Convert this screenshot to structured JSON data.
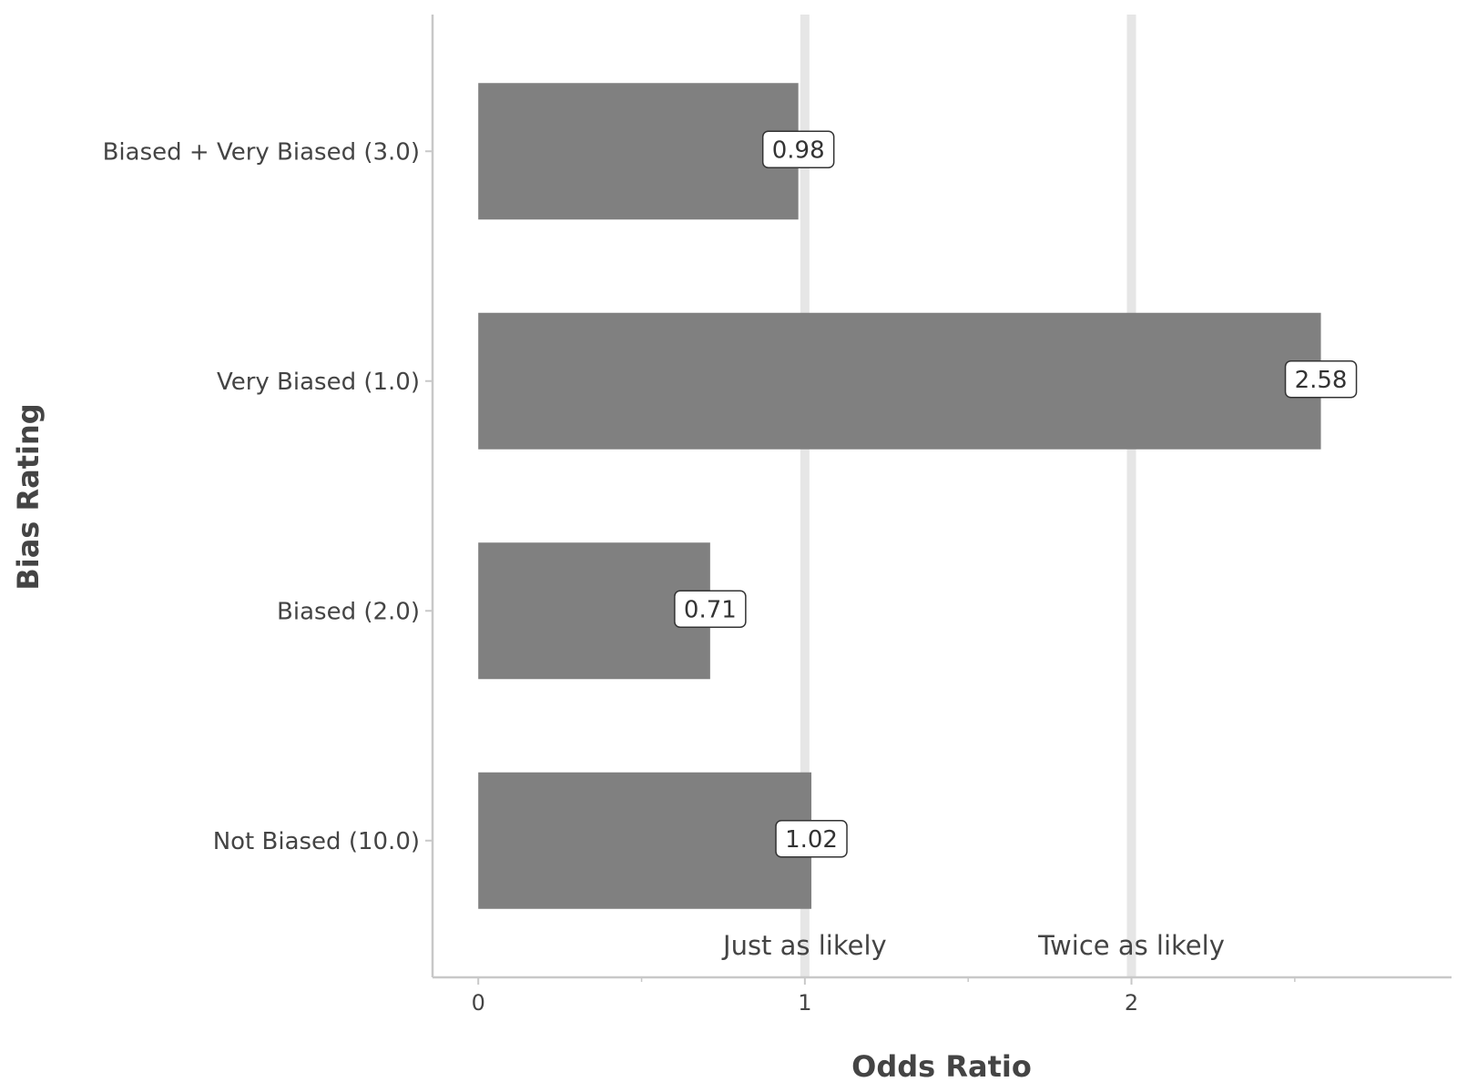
{
  "chart_data": {
    "type": "bar",
    "orientation": "horizontal",
    "xlabel": "Odds Ratio",
    "ylabel": "Bias Rating",
    "categories": [
      "Biased + Very Biased (3.0)",
      "Very Biased (1.0)",
      "Biased (2.0)",
      "Not Biased (10.0)"
    ],
    "values": [
      0.98,
      2.58,
      0.71,
      1.02
    ],
    "value_labels": [
      "0.98",
      "2.58",
      "0.71",
      "1.02"
    ],
    "xlim": [
      -0.14,
      2.98
    ],
    "x_ticks": [
      0,
      1,
      2
    ],
    "x_tick_labels": [
      "0",
      "1",
      "2"
    ],
    "x_minor_ticks": [
      0.5,
      1.5,
      2.5
    ],
    "reference_lines": [
      {
        "x": 1,
        "label": "Just as likely"
      },
      {
        "x": 2,
        "label": "Twice as likely"
      }
    ],
    "grid": false,
    "legend": "none",
    "colors": {
      "bar": "#808080",
      "reference_line": "#e6e6e6",
      "axis": "#c8c8c8",
      "text": "#444444"
    }
  }
}
